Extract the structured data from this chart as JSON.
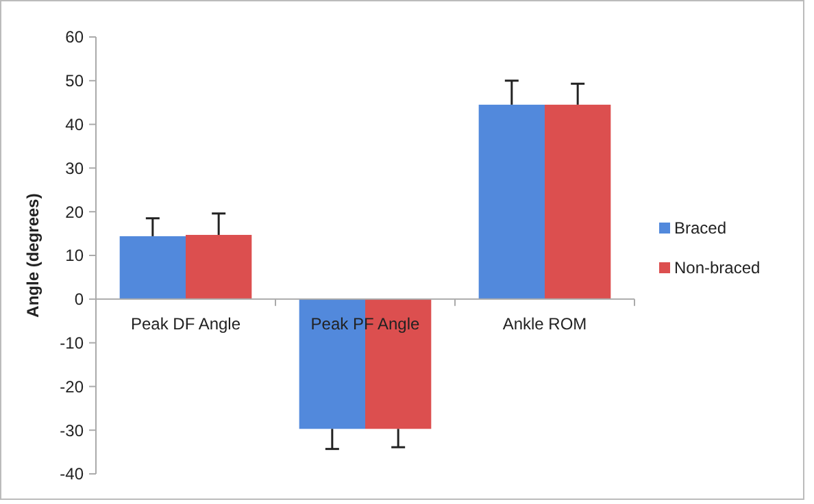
{
  "chart_data": {
    "type": "bar",
    "ylabel": "Angle (degrees)",
    "categories": [
      "Peak DF Angle",
      "Peak PF Angle",
      "Ankle ROM"
    ],
    "series": [
      {
        "name": "Braced",
        "color": "#5289dc",
        "values": [
          14.4,
          -29.7,
          44.5
        ],
        "errors": [
          [
            14.4,
            18.5
          ],
          [
            -34.3,
            -29.7
          ],
          [
            44.5,
            50.0
          ]
        ]
      },
      {
        "name": "Non-braced",
        "color": "#dc4f4f",
        "values": [
          14.7,
          -29.7,
          44.5
        ],
        "errors": [
          [
            14.7,
            19.6
          ],
          [
            -33.9,
            -29.7
          ],
          [
            44.5,
            49.3
          ]
        ]
      }
    ],
    "ylim": [
      -40,
      60
    ],
    "yticks": [
      -40,
      -30,
      -20,
      -10,
      0,
      10,
      20,
      30,
      40,
      50,
      60
    ],
    "legend": "right",
    "grid": false
  }
}
